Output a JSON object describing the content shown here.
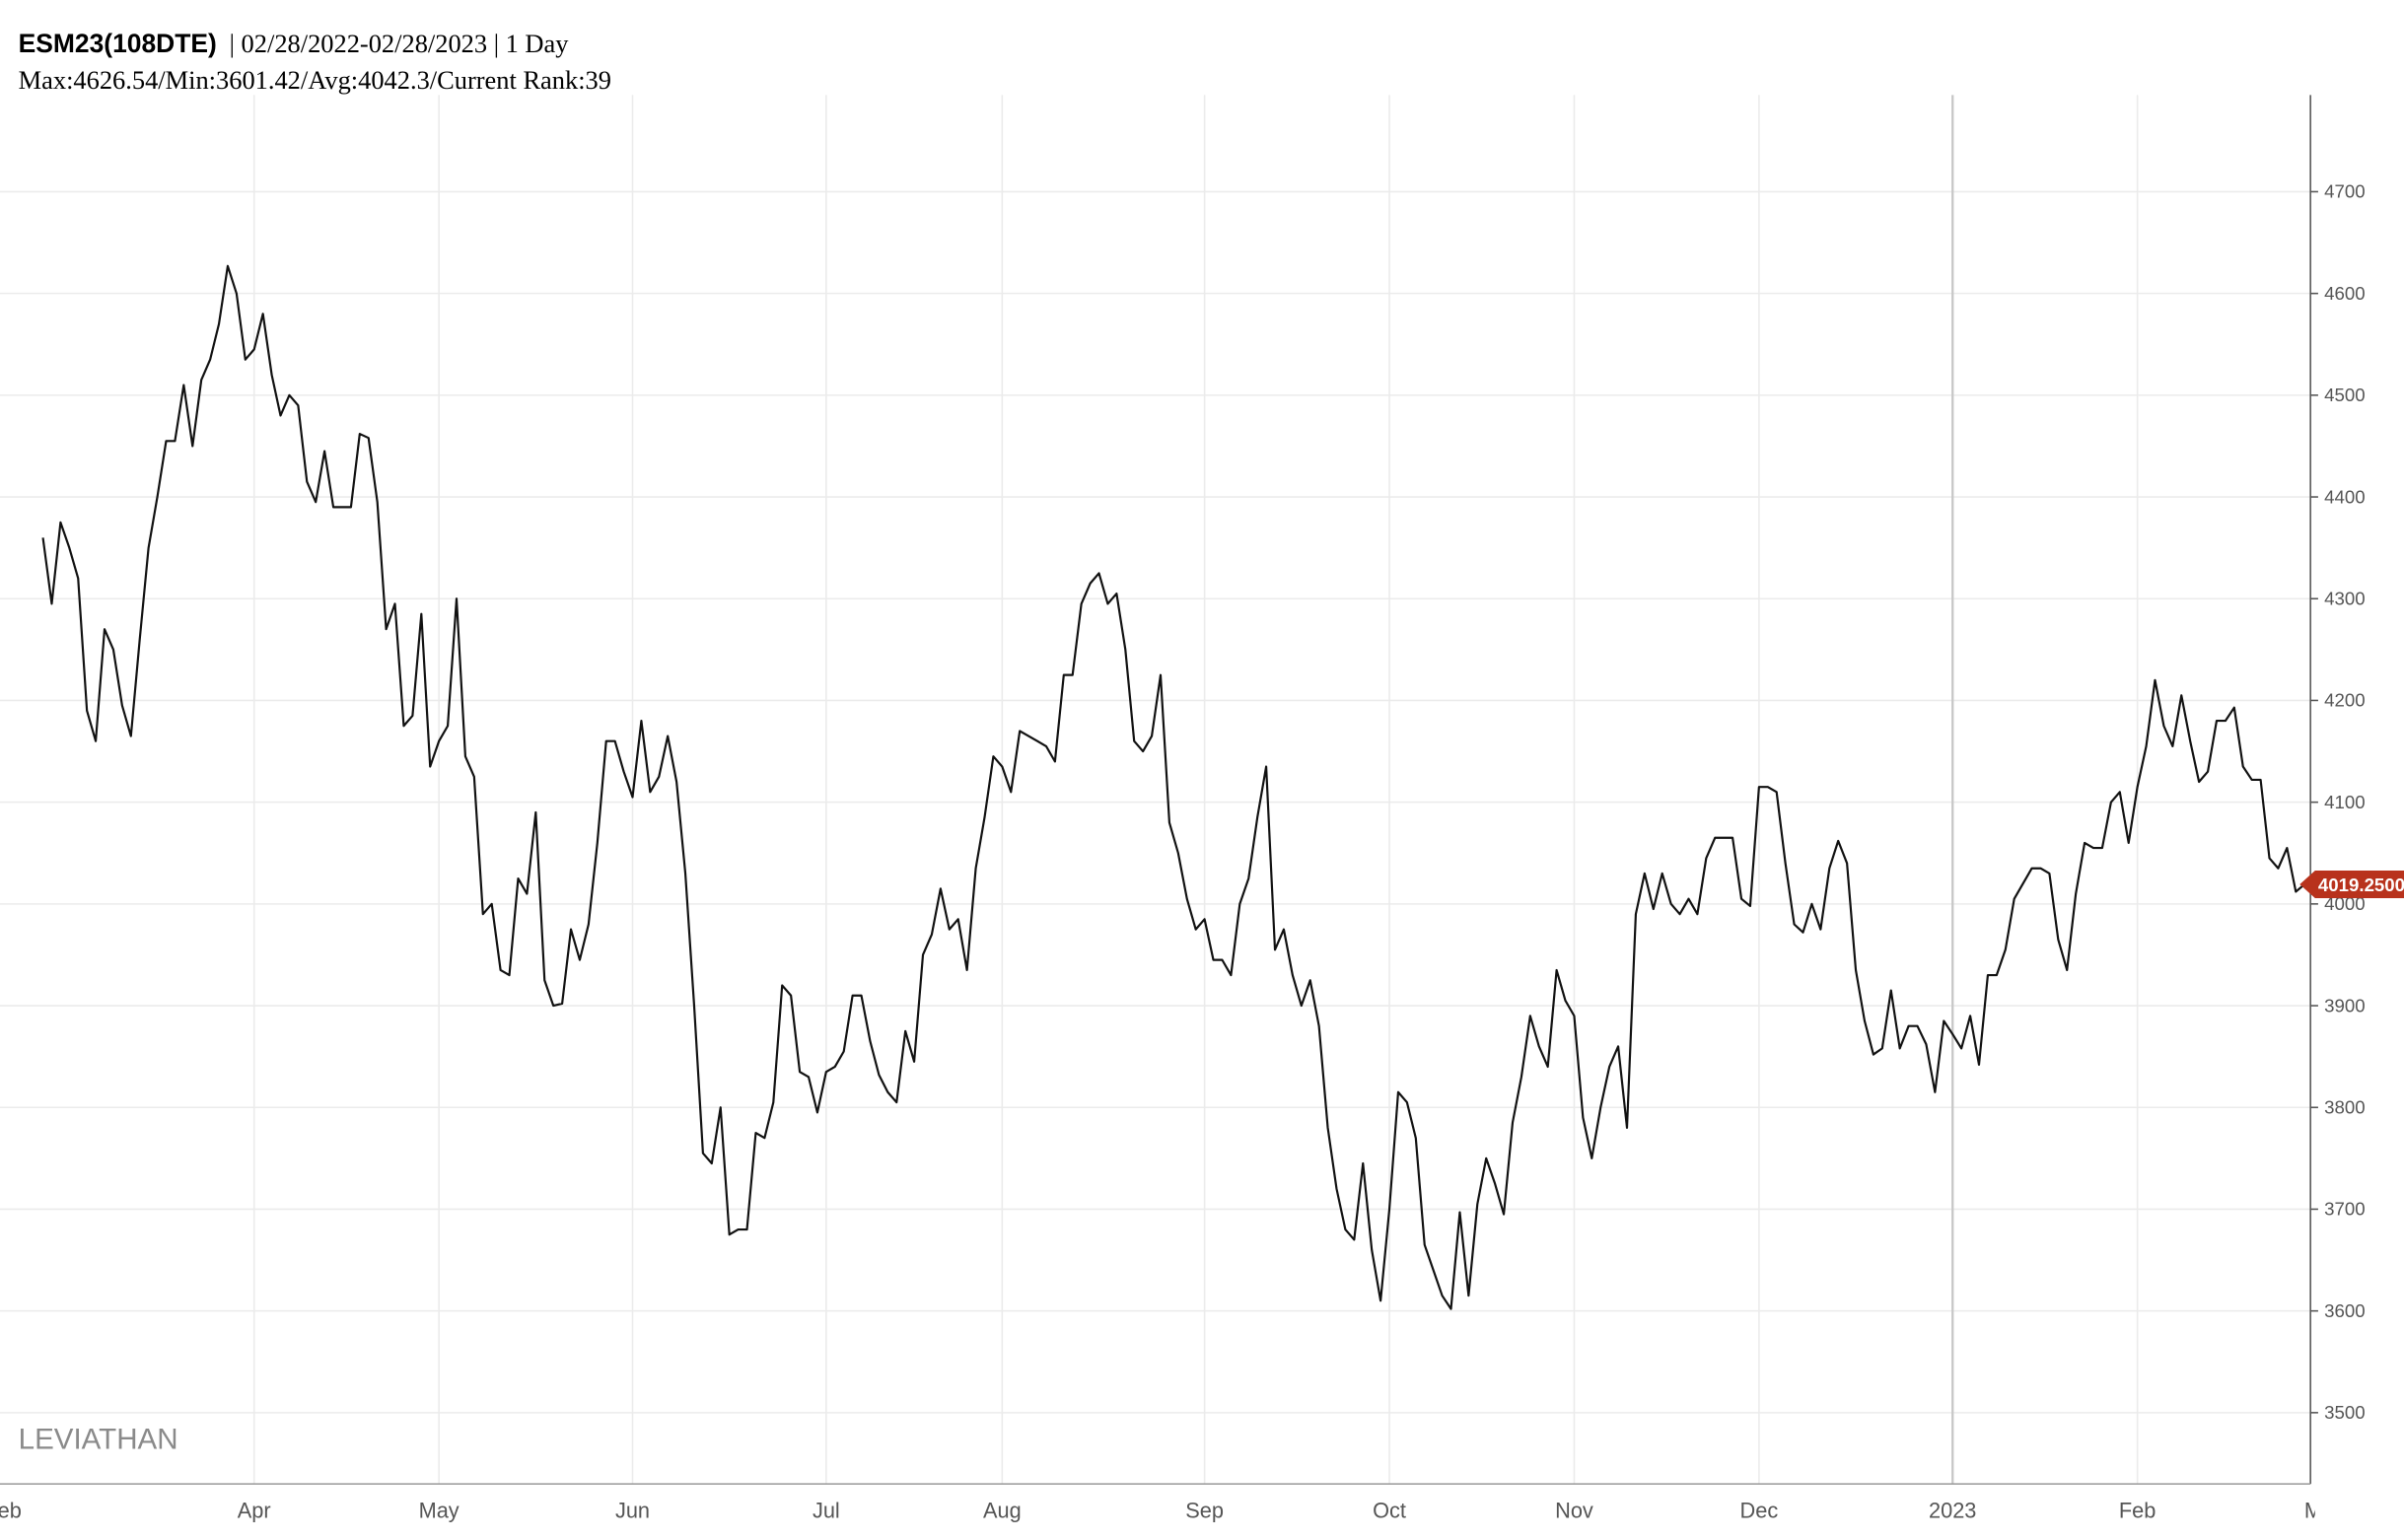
{
  "chart_data": {
    "type": "line",
    "title": "ESM23(108DTE)",
    "title_suffix": "| 02/28/2022-02/28/2023 | 1 Day",
    "subtitle": "Max:4626.54/Min:3601.42/Avg:4042.3/Current Rank:39",
    "watermark": "LEVIATHAN",
    "edge_labels": [
      "Feb",
      "Mar"
    ],
    "categories": [
      null,
      null,
      null,
      null,
      null,
      null,
      null,
      null,
      null,
      null,
      null,
      null,
      null,
      null,
      null,
      null,
      null,
      null,
      null,
      null,
      null,
      null,
      null,
      null,
      "Apr",
      null,
      null,
      null,
      null,
      null,
      null,
      null,
      null,
      null,
      null,
      null,
      null,
      null,
      null,
      null,
      null,
      null,
      null,
      null,
      null,
      "May",
      null,
      null,
      null,
      null,
      null,
      null,
      null,
      null,
      null,
      null,
      null,
      null,
      null,
      null,
      null,
      null,
      null,
      null,
      null,
      null,
      null,
      "Jun",
      null,
      null,
      null,
      null,
      null,
      null,
      null,
      null,
      null,
      null,
      null,
      null,
      null,
      null,
      null,
      null,
      null,
      null,
      null,
      null,
      null,
      "Jul",
      null,
      null,
      null,
      null,
      null,
      null,
      null,
      null,
      null,
      null,
      null,
      null,
      null,
      null,
      null,
      null,
      null,
      null,
      null,
      "Aug",
      null,
      null,
      null,
      null,
      null,
      null,
      null,
      null,
      null,
      null,
      null,
      null,
      null,
      null,
      null,
      null,
      null,
      null,
      null,
      null,
      null,
      null,
      "Sep",
      null,
      null,
      null,
      null,
      null,
      null,
      null,
      null,
      null,
      null,
      null,
      null,
      null,
      null,
      null,
      null,
      null,
      null,
      null,
      null,
      "Oct",
      null,
      null,
      null,
      null,
      null,
      null,
      null,
      null,
      null,
      null,
      null,
      null,
      null,
      null,
      null,
      null,
      null,
      null,
      null,
      null,
      "Nov",
      null,
      null,
      null,
      null,
      null,
      null,
      null,
      null,
      null,
      null,
      null,
      null,
      null,
      null,
      null,
      null,
      null,
      null,
      null,
      null,
      "Dec",
      null,
      null,
      null,
      null,
      null,
      null,
      null,
      null,
      null,
      null,
      null,
      null,
      null,
      null,
      null,
      null,
      null,
      null,
      null,
      null,
      null,
      "2023",
      null,
      null,
      null,
      null,
      null,
      null,
      null,
      null,
      null,
      null,
      null,
      null,
      null,
      null,
      null,
      null,
      null,
      null,
      null,
      null,
      "Feb",
      null,
      null,
      null,
      null,
      null,
      null,
      null,
      null,
      null,
      null,
      null,
      null,
      null,
      null,
      null,
      null,
      null,
      null,
      null
    ],
    "values": [
      4360,
      4295,
      4375,
      4350,
      4320,
      4190,
      4160,
      4270,
      4250,
      4195,
      4165,
      4260,
      4350,
      4400,
      4455,
      4455,
      4510,
      4450,
      4515,
      4535,
      4570,
      4627,
      4600,
      4535,
      4545,
      4580,
      4520,
      4480,
      4500,
      4490,
      4415,
      4395,
      4445,
      4390,
      4390,
      4390,
      4462,
      4458,
      4395,
      4270,
      4295,
      4175,
      4185,
      4285,
      4135,
      4160,
      4175,
      4300,
      4145,
      4125,
      3990,
      4000,
      3935,
      3930,
      4025,
      4010,
      4090,
      3925,
      3900,
      3902,
      3975,
      3945,
      3980,
      4060,
      4160,
      4160,
      4130,
      4105,
      4180,
      4110,
      4125,
      4165,
      4120,
      4030,
      3900,
      3755,
      3745,
      3800,
      3675,
      3680,
      3680,
      3775,
      3770,
      3805,
      3920,
      3910,
      3835,
      3830,
      3795,
      3835,
      3840,
      3855,
      3910,
      3910,
      3865,
      3832,
      3815,
      3805,
      3875,
      3845,
      3950,
      3970,
      4015,
      3975,
      3985,
      3935,
      4035,
      4085,
      4145,
      4135,
      4110,
      4170,
      4165,
      4160,
      4155,
      4140,
      4225,
      4225,
      4295,
      4315,
      4325,
      4295,
      4305,
      4250,
      4160,
      4150,
      4165,
      4225,
      4080,
      4050,
      4005,
      3975,
      3985,
      3945,
      3945,
      3930,
      4000,
      4025,
      4085,
      4135,
      3955,
      3975,
      3930,
      3900,
      3925,
      3880,
      3780,
      3720,
      3680,
      3670,
      3745,
      3660,
      3610,
      3700,
      3815,
      3805,
      3770,
      3665,
      3640,
      3615,
      3602,
      3697,
      3615,
      3705,
      3750,
      3725,
      3695,
      3785,
      3830,
      3890,
      3860,
      3840,
      3935,
      3905,
      3890,
      3790,
      3750,
      3800,
      3840,
      3860,
      3780,
      3990,
      4030,
      3995,
      4030,
      4000,
      3990,
      4005,
      3990,
      4045,
      4065,
      4065,
      4065,
      4005,
      3998,
      4115,
      4115,
      4110,
      4040,
      3980,
      3972,
      4000,
      3975,
      4035,
      4062,
      4040,
      3935,
      3885,
      3852,
      3858,
      3915,
      3858,
      3880,
      3880,
      3862,
      3815,
      3885,
      3872,
      3858,
      3890,
      3842,
      3930,
      3930,
      3955,
      4005,
      4020,
      4035,
      4035,
      4030,
      3965,
      3935,
      4010,
      4060,
      4055,
      4055,
      4100,
      4110,
      4060,
      4115,
      4155,
      4220,
      4175,
      4155,
      4205,
      4160,
      4120,
      4130,
      4180,
      4180,
      4193,
      4135,
      4122,
      4122,
      4045,
      4035,
      4055,
      4012,
      4019.25
    ],
    "last_value_label": "4019.2500",
    "color": "#111111",
    "last_value_color": "#b8321c",
    "ylim": [
      3430,
      4795
    ],
    "yticks": [
      3500,
      3600,
      3700,
      3800,
      3900,
      4000,
      4100,
      4200,
      4300,
      4400,
      4500,
      4600,
      4700
    ],
    "grid": true
  }
}
